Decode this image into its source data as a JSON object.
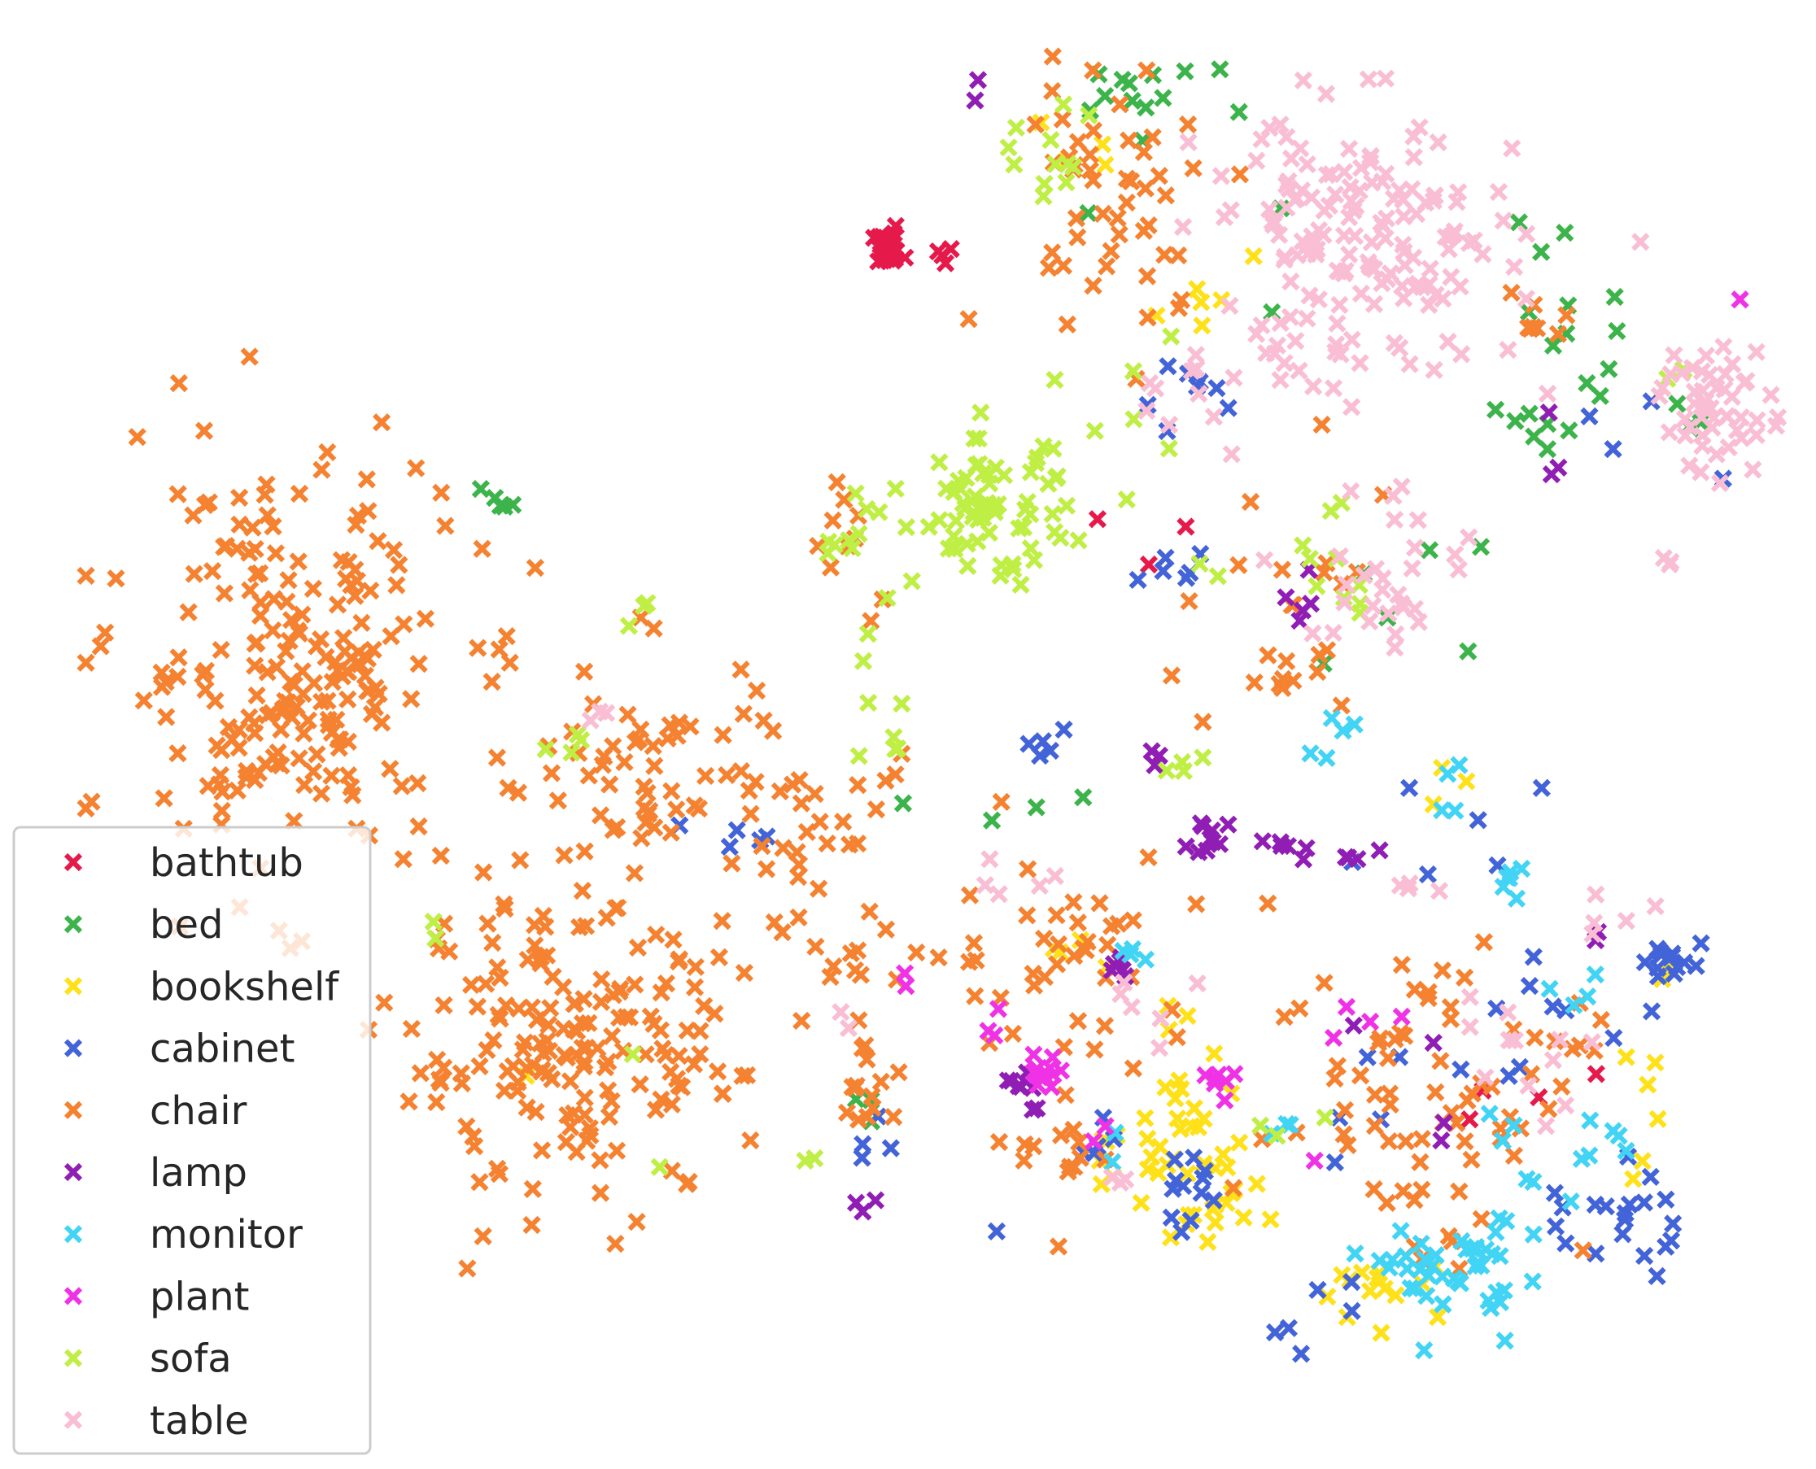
{
  "chart_data": {
    "type": "scatter",
    "title": "",
    "xlabel": "",
    "ylabel": "",
    "xlim": [
      0,
      100
    ],
    "ylim": [
      0,
      80
    ],
    "grid": false,
    "marker": "x",
    "legend": {
      "placement": "lower-left"
    },
    "series": [
      {
        "name": "bathtub",
        "color": "#e6194b",
        "clusters": [
          {
            "cx": 47.0,
            "cy": 67.9,
            "sx": 0.45,
            "sy": 0.45,
            "n": 40
          },
          {
            "cx": 50.5,
            "cy": 67.7,
            "sx": 0.6,
            "sy": 0.35,
            "n": 4
          },
          {
            "cx": 84.0,
            "cy": 18.5,
            "sx": 2.0,
            "sy": 1.3,
            "n": 4
          },
          {
            "cx": 62.0,
            "cy": 52.0,
            "sx": 2.5,
            "sy": 2.0,
            "n": 3
          }
        ]
      },
      {
        "name": "bed",
        "color": "#3cb44b",
        "clusters": [
          {
            "cx": 61.5,
            "cy": 76.8,
            "sx": 2.0,
            "sy": 0.6,
            "n": 10
          },
          {
            "cx": 86.0,
            "cy": 65.5,
            "sx": 1.4,
            "sy": 2.8,
            "n": 12
          },
          {
            "cx": 85.0,
            "cy": 57.5,
            "sx": 1.5,
            "sy": 1.0,
            "n": 7
          },
          {
            "cx": 24.5,
            "cy": 53.5,
            "sx": 0.6,
            "sy": 0.8,
            "n": 5
          },
          {
            "cx": 93.0,
            "cy": 57.0,
            "sx": 1.2,
            "sy": 1.0,
            "n": 4
          },
          {
            "cx": 66.0,
            "cy": 72.0,
            "sx": 3.5,
            "sy": 4.0,
            "n": 6
          },
          {
            "cx": 75.0,
            "cy": 48.0,
            "sx": 4.0,
            "sy": 3.0,
            "n": 6
          },
          {
            "cx": 53.0,
            "cy": 35.0,
            "sx": 2.0,
            "sy": 1.5,
            "n": 4
          },
          {
            "cx": 46.0,
            "cy": 19.0,
            "sx": 0.7,
            "sy": 1.2,
            "n": 3
          }
        ]
      },
      {
        "name": "bookshelf",
        "color": "#ffe119",
        "clusters": [
          {
            "cx": 64.5,
            "cy": 18.0,
            "sx": 1.3,
            "sy": 3.5,
            "n": 30
          },
          {
            "cx": 76.0,
            "cy": 9.0,
            "sx": 2.0,
            "sy": 1.3,
            "n": 14
          },
          {
            "cx": 67.0,
            "cy": 14.5,
            "sx": 1.5,
            "sy": 1.5,
            "n": 12
          },
          {
            "cx": 60.5,
            "cy": 15.5,
            "sx": 1.0,
            "sy": 1.5,
            "n": 8
          },
          {
            "cx": 66.0,
            "cy": 66.0,
            "sx": 2.0,
            "sy": 2.0,
            "n": 6
          },
          {
            "cx": 91.0,
            "cy": 22.0,
            "sx": 1.5,
            "sy": 5.0,
            "n": 8
          },
          {
            "cx": 58.0,
            "cy": 74.0,
            "sx": 1.5,
            "sy": 1.0,
            "n": 4
          },
          {
            "cx": 80.0,
            "cy": 38.0,
            "sx": 1.5,
            "sy": 1.0,
            "n": 3
          },
          {
            "cx": 26.0,
            "cy": 21.5,
            "sx": 0.3,
            "sy": 0.3,
            "n": 1
          },
          {
            "cx": 59.0,
            "cy": 28.5,
            "sx": 1.5,
            "sy": 1.0,
            "n": 4
          }
        ]
      },
      {
        "name": "cabinet",
        "color": "#4363d8",
        "clusters": [
          {
            "cx": 92.5,
            "cy": 27.5,
            "sx": 0.8,
            "sy": 0.8,
            "n": 14
          },
          {
            "cx": 88.5,
            "cy": 13.0,
            "sx": 2.0,
            "sy": 1.8,
            "n": 20
          },
          {
            "cx": 64.0,
            "cy": 14.5,
            "sx": 0.8,
            "sy": 1.5,
            "n": 12
          },
          {
            "cx": 65.0,
            "cy": 59.5,
            "sx": 1.5,
            "sy": 1.2,
            "n": 8
          },
          {
            "cx": 63.5,
            "cy": 48.5,
            "sx": 2.0,
            "sy": 1.5,
            "n": 6
          },
          {
            "cx": 56.0,
            "cy": 40.0,
            "sx": 0.6,
            "sy": 0.6,
            "n": 5
          },
          {
            "cx": 59.0,
            "cy": 17.0,
            "sx": 1.0,
            "sy": 1.0,
            "n": 5
          },
          {
            "cx": 72.5,
            "cy": 7.5,
            "sx": 1.5,
            "sy": 1.0,
            "n": 6
          },
          {
            "cx": 39.0,
            "cy": 34.5,
            "sx": 1.5,
            "sy": 0.4,
            "n": 5
          },
          {
            "cx": 84.0,
            "cy": 24.0,
            "sx": 3.0,
            "sy": 2.0,
            "n": 10
          },
          {
            "cx": 79.0,
            "cy": 35.0,
            "sx": 3.0,
            "sy": 2.0,
            "n": 6
          },
          {
            "cx": 46.0,
            "cy": 17.0,
            "sx": 0.8,
            "sy": 1.5,
            "n": 4
          },
          {
            "cx": 92.0,
            "cy": 57.0,
            "sx": 3.0,
            "sy": 2.0,
            "n": 4
          },
          {
            "cx": 53.0,
            "cy": 12.0,
            "sx": 0.3,
            "sy": 0.3,
            "n": 1
          },
          {
            "cx": 75.0,
            "cy": 19.0,
            "sx": 1.5,
            "sy": 1.5,
            "n": 5
          }
        ]
      },
      {
        "name": "chair",
        "color": "#f58231",
        "clusters": [
          {
            "cx": 12.0,
            "cy": 44.0,
            "sx": 5.0,
            "sy": 6.0,
            "n": 210
          },
          {
            "cx": 28.5,
            "cy": 22.0,
            "sx": 5.0,
            "sy": 4.0,
            "n": 170
          },
          {
            "cx": 33.0,
            "cy": 38.0,
            "sx": 4.0,
            "sy": 4.0,
            "n": 60
          },
          {
            "cx": 43.0,
            "cy": 34.0,
            "sx": 3.0,
            "sy": 3.0,
            "n": 35
          },
          {
            "cx": 60.0,
            "cy": 71.0,
            "sx": 3.5,
            "sy": 4.0,
            "n": 50
          },
          {
            "cx": 78.5,
            "cy": 20.0,
            "sx": 4.5,
            "sy": 5.0,
            "n": 70
          },
          {
            "cx": 57.5,
            "cy": 28.0,
            "sx": 3.5,
            "sy": 3.0,
            "n": 40
          },
          {
            "cx": 84.0,
            "cy": 64.0,
            "sx": 1.5,
            "sy": 1.0,
            "n": 8
          },
          {
            "cx": 71.0,
            "cy": 47.0,
            "sx": 3.5,
            "sy": 4.0,
            "n": 25
          },
          {
            "cx": 46.0,
            "cy": 20.5,
            "sx": 1.3,
            "sy": 1.5,
            "n": 15
          },
          {
            "cx": 57.5,
            "cy": 17.0,
            "sx": 1.5,
            "sy": 2.5,
            "n": 15
          },
          {
            "cx": 45.5,
            "cy": 27.0,
            "sx": 1.3,
            "sy": 0.8,
            "n": 8
          },
          {
            "cx": 86.5,
            "cy": 23.5,
            "sx": 1.0,
            "sy": 1.0,
            "n": 6
          },
          {
            "cx": 44.5,
            "cy": 51.0,
            "sx": 1.0,
            "sy": 3.0,
            "n": 10
          }
        ]
      },
      {
        "name": "lamp",
        "color": "#911eb4",
        "clusters": [
          {
            "cx": 55.0,
            "cy": 20.0,
            "sx": 0.8,
            "sy": 0.7,
            "n": 10
          },
          {
            "cx": 65.5,
            "cy": 34.5,
            "sx": 0.8,
            "sy": 1.3,
            "n": 10
          },
          {
            "cx": 60.5,
            "cy": 27.0,
            "sx": 0.5,
            "sy": 0.5,
            "n": 6
          },
          {
            "cx": 73.5,
            "cy": 33.5,
            "sx": 1.5,
            "sy": 0.8,
            "n": 6
          },
          {
            "cx": 71.5,
            "cy": 48.0,
            "sx": 0.6,
            "sy": 0.8,
            "n": 5
          },
          {
            "cx": 69.5,
            "cy": 33.5,
            "sx": 0.6,
            "sy": 0.6,
            "n": 4
          },
          {
            "cx": 45.5,
            "cy": 13.5,
            "sx": 0.5,
            "sy": 0.3,
            "n": 3
          },
          {
            "cx": 63.0,
            "cy": 39.5,
            "sx": 0.4,
            "sy": 0.5,
            "n": 3
          },
          {
            "cx": 85.5,
            "cy": 56.0,
            "sx": 1.0,
            "sy": 1.0,
            "n": 3
          },
          {
            "cx": 52.0,
            "cy": 77.0,
            "sx": 0.3,
            "sy": 0.3,
            "n": 2
          },
          {
            "cx": 77.0,
            "cy": 18.0,
            "sx": 3.0,
            "sy": 3.0,
            "n": 4
          },
          {
            "cx": 88.0,
            "cy": 29.0,
            "sx": 0.5,
            "sy": 0.5,
            "n": 2
          }
        ]
      },
      {
        "name": "monitor",
        "color": "#42d4f4",
        "clusters": [
          {
            "cx": 79.5,
            "cy": 9.5,
            "sx": 1.8,
            "sy": 1.5,
            "n": 35
          },
          {
            "cx": 82.5,
            "cy": 14.0,
            "sx": 1.5,
            "sy": 3.0,
            "n": 16
          },
          {
            "cx": 83.0,
            "cy": 32.5,
            "sx": 0.6,
            "sy": 0.8,
            "n": 6
          },
          {
            "cx": 89.0,
            "cy": 16.5,
            "sx": 1.2,
            "sy": 1.0,
            "n": 6
          },
          {
            "cx": 73.0,
            "cy": 40.0,
            "sx": 1.0,
            "sy": 1.0,
            "n": 5
          },
          {
            "cx": 61.0,
            "cy": 28.0,
            "sx": 0.6,
            "sy": 0.4,
            "n": 4
          },
          {
            "cx": 79.5,
            "cy": 38.0,
            "sx": 0.4,
            "sy": 1.0,
            "n": 4
          },
          {
            "cx": 87.0,
            "cy": 26.0,
            "sx": 1.0,
            "sy": 1.0,
            "n": 4
          },
          {
            "cx": 60.0,
            "cy": 17.0,
            "sx": 0.4,
            "sy": 0.4,
            "n": 2
          },
          {
            "cx": 70.0,
            "cy": 18.0,
            "sx": 1.0,
            "sy": 0.5,
            "n": 3
          }
        ]
      },
      {
        "name": "plant",
        "color": "#f032e6",
        "clusters": [
          {
            "cx": 56.0,
            "cy": 21.0,
            "sx": 0.5,
            "sy": 0.6,
            "n": 12
          },
          {
            "cx": 66.5,
            "cy": 20.5,
            "sx": 0.6,
            "sy": 0.6,
            "n": 7
          },
          {
            "cx": 53.0,
            "cy": 23.5,
            "sx": 0.3,
            "sy": 0.6,
            "n": 3
          },
          {
            "cx": 48.0,
            "cy": 26.0,
            "sx": 0.3,
            "sy": 0.3,
            "n": 2
          },
          {
            "cx": 74.5,
            "cy": 24.5,
            "sx": 1.5,
            "sy": 0.8,
            "n": 4
          },
          {
            "cx": 96.0,
            "cy": 64.5,
            "sx": 0.3,
            "sy": 0.3,
            "n": 1
          },
          {
            "cx": 59.5,
            "cy": 17.5,
            "sx": 0.4,
            "sy": 0.4,
            "n": 2
          },
          {
            "cx": 72.0,
            "cy": 16.5,
            "sx": 0.4,
            "sy": 0.4,
            "n": 1
          }
        ]
      },
      {
        "name": "sofa",
        "color": "#bfef45",
        "clusters": [
          {
            "cx": 53.0,
            "cy": 53.0,
            "sx": 2.2,
            "sy": 2.0,
            "n": 70
          },
          {
            "cx": 45.0,
            "cy": 50.5,
            "sx": 1.5,
            "sy": 3.0,
            "n": 12
          },
          {
            "cx": 56.5,
            "cy": 73.5,
            "sx": 2.0,
            "sy": 1.5,
            "n": 12
          },
          {
            "cx": 72.5,
            "cy": 48.5,
            "sx": 2.5,
            "sy": 2.0,
            "n": 12
          },
          {
            "cx": 47.0,
            "cy": 39.5,
            "sx": 1.0,
            "sy": 1.5,
            "n": 6
          },
          {
            "cx": 61.0,
            "cy": 58.0,
            "sx": 2.0,
            "sy": 1.5,
            "n": 6
          },
          {
            "cx": 64.5,
            "cy": 38.5,
            "sx": 1.0,
            "sy": 0.8,
            "n": 4
          },
          {
            "cx": 28.0,
            "cy": 39.5,
            "sx": 1.0,
            "sy": 0.6,
            "n": 4
          },
          {
            "cx": 93.0,
            "cy": 60.0,
            "sx": 1.0,
            "sy": 1.0,
            "n": 3
          },
          {
            "cx": 32.5,
            "cy": 47.5,
            "sx": 0.6,
            "sy": 0.5,
            "n": 3
          },
          {
            "cx": 21.0,
            "cy": 29.0,
            "sx": 0.4,
            "sy": 0.4,
            "n": 2
          },
          {
            "cx": 32.0,
            "cy": 22.0,
            "sx": 0.3,
            "sy": 0.3,
            "n": 1
          },
          {
            "cx": 34.0,
            "cy": 16.0,
            "sx": 0.3,
            "sy": 0.3,
            "n": 1
          },
          {
            "cx": 70.0,
            "cy": 18.5,
            "sx": 1.5,
            "sy": 1.0,
            "n": 3
          },
          {
            "cx": 42.5,
            "cy": 16.0,
            "sx": 0.4,
            "sy": 0.4,
            "n": 2
          }
        ]
      },
      {
        "name": "table",
        "color": "#fabed4",
        "clusters": [
          {
            "cx": 74.5,
            "cy": 68.0,
            "sx": 4.5,
            "sy": 4.0,
            "n": 160
          },
          {
            "cx": 95.0,
            "cy": 59.0,
            "sx": 1.6,
            "sy": 2.0,
            "n": 50
          },
          {
            "cx": 76.5,
            "cy": 49.5,
            "sx": 2.5,
            "sy": 2.8,
            "n": 30
          },
          {
            "cx": 65.5,
            "cy": 62.0,
            "sx": 2.5,
            "sy": 3.0,
            "n": 14
          },
          {
            "cx": 83.5,
            "cy": 24.0,
            "sx": 2.0,
            "sy": 2.0,
            "n": 10
          },
          {
            "cx": 90.0,
            "cy": 30.0,
            "sx": 1.2,
            "sy": 1.0,
            "n": 5
          },
          {
            "cx": 78.0,
            "cy": 31.0,
            "sx": 1.5,
            "sy": 1.0,
            "n": 4
          },
          {
            "cx": 62.5,
            "cy": 25.5,
            "sx": 1.5,
            "sy": 1.5,
            "n": 6
          },
          {
            "cx": 53.0,
            "cy": 32.5,
            "sx": 2.0,
            "sy": 0.7,
            "n": 5
          },
          {
            "cx": 30.0,
            "cy": 41.5,
            "sx": 0.5,
            "sy": 0.8,
            "n": 3
          },
          {
            "cx": 44.5,
            "cy": 24.0,
            "sx": 0.4,
            "sy": 0.4,
            "n": 2
          },
          {
            "cx": 60.5,
            "cy": 14.5,
            "sx": 0.8,
            "sy": 0.8,
            "n": 3
          },
          {
            "cx": 92.0,
            "cy": 50.0,
            "sx": 0.8,
            "sy": 0.5,
            "n": 3
          },
          {
            "cx": 85.0,
            "cy": 19.5,
            "sx": 1.0,
            "sy": 1.0,
            "n": 3
          }
        ]
      }
    ]
  }
}
